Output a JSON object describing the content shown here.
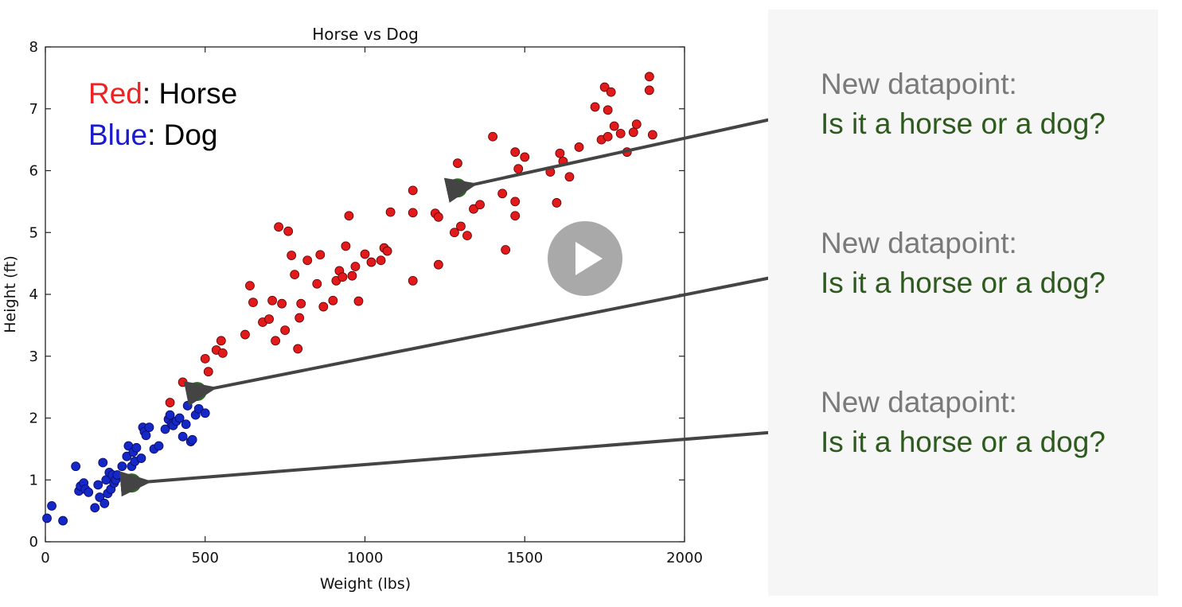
{
  "chart_data": {
    "type": "scatter",
    "title": "Horse vs Dog",
    "xlabel": "Weight (lbs)",
    "ylabel": "Height (ft)",
    "xlim": [
      0,
      2000
    ],
    "ylim": [
      0,
      8
    ],
    "xticks": [
      "0",
      "500",
      "1000",
      "1500",
      "2000"
    ],
    "yticks": [
      "0",
      "1",
      "2",
      "3",
      "4",
      "5",
      "6",
      "7",
      "8"
    ],
    "grid": false,
    "legend_text": [
      {
        "color_word": "Red",
        "rest": ": Horse",
        "color": "#ee2222"
      },
      {
        "color_word": "Blue",
        "rest": ": Dog",
        "color": "#1a1ad0"
      }
    ],
    "series": [
      {
        "name": "Horse",
        "color": "#e31a1c",
        "x": [
          390,
          430,
          500,
          510,
          535,
          550,
          555,
          625,
          640,
          650,
          680,
          700,
          710,
          720,
          730,
          740,
          750,
          760,
          770,
          780,
          790,
          795,
          800,
          820,
          850,
          860,
          870,
          900,
          910,
          920,
          930,
          940,
          950,
          960,
          970,
          980,
          1000,
          1020,
          1050,
          1060,
          1070,
          1080,
          1150,
          1150,
          1150,
          1220,
          1230,
          1230,
          1280,
          1290,
          1300,
          1320,
          1340,
          1360,
          1400,
          1430,
          1440,
          1470,
          1470,
          1470,
          1480,
          1500,
          1580,
          1600,
          1610,
          1620,
          1640,
          1670,
          1720,
          1740,
          1750,
          1760,
          1760,
          1770,
          1780,
          1800,
          1820,
          1840,
          1850,
          1890,
          1890,
          1900
        ],
        "y": [
          2.25,
          2.58,
          2.96,
          2.75,
          3.1,
          3.25,
          3.05,
          3.35,
          4.14,
          3.87,
          3.55,
          3.6,
          3.9,
          3.25,
          5.09,
          3.85,
          3.42,
          5.02,
          4.63,
          4.32,
          3.12,
          3.62,
          3.85,
          4.55,
          4.17,
          4.64,
          3.8,
          3.9,
          4.22,
          4.38,
          4.28,
          4.78,
          5.27,
          4.3,
          4.45,
          3.89,
          4.65,
          4.52,
          4.55,
          4.75,
          4.7,
          5.33,
          4.22,
          5.32,
          5.68,
          5.31,
          5.25,
          4.48,
          5.0,
          6.12,
          5.1,
          4.95,
          5.38,
          5.45,
          6.55,
          5.63,
          4.72,
          6.3,
          5.5,
          5.27,
          6.03,
          6.22,
          5.98,
          5.48,
          6.28,
          6.15,
          5.9,
          6.38,
          7.03,
          6.5,
          7.35,
          6.55,
          6.98,
          7.27,
          6.72,
          6.6,
          6.3,
          6.62,
          6.75,
          7.3,
          7.52,
          6.58
        ]
      },
      {
        "name": "Dog",
        "color": "#1428c8",
        "x": [
          5,
          20,
          55,
          95,
          105,
          110,
          120,
          125,
          135,
          155,
          165,
          170,
          180,
          185,
          190,
          195,
          200,
          205,
          210,
          215,
          220,
          225,
          240,
          255,
          260,
          270,
          275,
          280,
          285,
          300,
          305,
          310,
          315,
          325,
          340,
          355,
          375,
          385,
          390,
          395,
          400,
          410,
          420,
          430,
          440,
          445,
          455,
          460,
          470,
          480,
          500
        ],
        "y": [
          0.38,
          0.58,
          0.34,
          1.22,
          0.82,
          0.9,
          0.95,
          0.85,
          0.8,
          0.55,
          0.92,
          0.72,
          1.28,
          0.62,
          1.0,
          0.78,
          1.12,
          0.85,
          1.08,
          0.95,
          1.0,
          1.08,
          1.22,
          1.38,
          1.55,
          1.22,
          1.45,
          1.3,
          1.52,
          1.35,
          1.85,
          1.78,
          1.72,
          1.85,
          1.5,
          1.55,
          1.82,
          1.98,
          2.05,
          1.9,
          1.88,
          1.95,
          2.0,
          1.7,
          1.9,
          2.2,
          1.62,
          1.65,
          2.05,
          2.15,
          2.08
        ]
      },
      {
        "name": "New datapoint",
        "color": "#2e6b22",
        "x": [
          1290,
          475,
          270
        ],
        "y": [
          5.72,
          2.43,
          0.95
        ]
      }
    ],
    "annotations": [
      {
        "line1": "New datapoint:",
        "line2": "Is it a horse or a dog?"
      },
      {
        "line1": "New datapoint:",
        "line2": "Is it a horse or a dog?"
      },
      {
        "line1": "New datapoint:",
        "line2": "Is it a horse or a dog?"
      }
    ]
  }
}
